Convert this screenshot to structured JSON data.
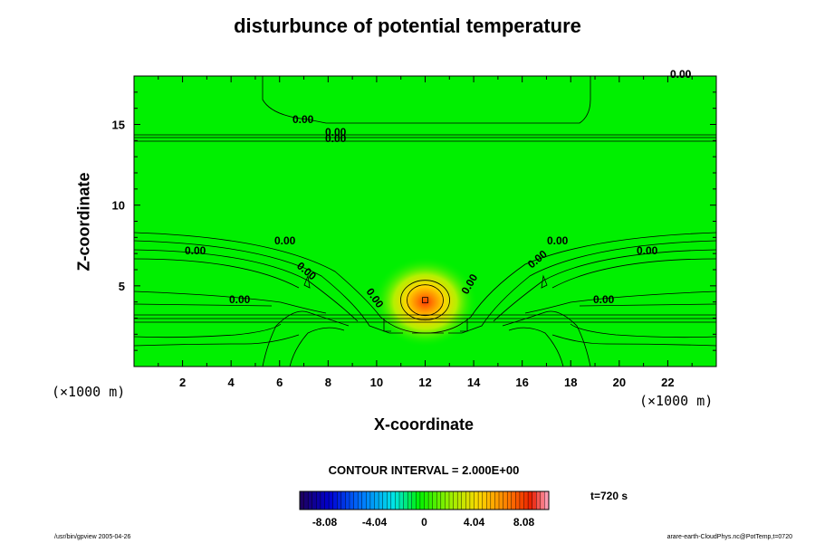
{
  "chart_data": {
    "type": "heatmap",
    "title": "disturbunce of potential temperature",
    "xlabel": "X-coordinate",
    "ylabel": "Z-coordinate",
    "x_unit": "(×1000 m)",
    "y_unit": "(×1000 m)",
    "xlim": [
      0,
      24
    ],
    "ylim": [
      0,
      18
    ],
    "x_ticks": [
      "2",
      "4",
      "6",
      "8",
      "10",
      "12",
      "14",
      "16",
      "18",
      "20",
      "22"
    ],
    "x_tick_values": [
      2,
      4,
      6,
      8,
      10,
      12,
      14,
      16,
      18,
      20,
      22
    ],
    "y_ticks": [
      "5",
      "10",
      "15"
    ],
    "y_tick_values": [
      5,
      10,
      15
    ],
    "contour_labels": [
      "0.00",
      "0.00",
      "0.00",
      "0.00",
      "0.00",
      "0.00",
      "0.00",
      "0.00",
      "0.00",
      "0.00",
      "0.00",
      "0.00",
      "0.00",
      "0.00",
      "0.00"
    ],
    "contour_interval": "CONTOUR INTERVAL = 2.000E+00",
    "time_label": "t=720 s",
    "colorbar": {
      "ticks": [
        "-8.08",
        "-4.04",
        "0",
        "4.04",
        "8.08"
      ],
      "tick_values": [
        -8.08,
        -4.04,
        0,
        4.04,
        8.08
      ],
      "range": [
        -10.1,
        10.1
      ]
    },
    "anomaly": {
      "x": 12,
      "z": 4,
      "peak": 10
    }
  },
  "footer": {
    "left": "/usr/bin/gpview 2005-04-26",
    "right": "arare-earth-CloudPhys.nc@PotTemp,t=0720"
  },
  "colors": {
    "background_field": "#00f000"
  }
}
